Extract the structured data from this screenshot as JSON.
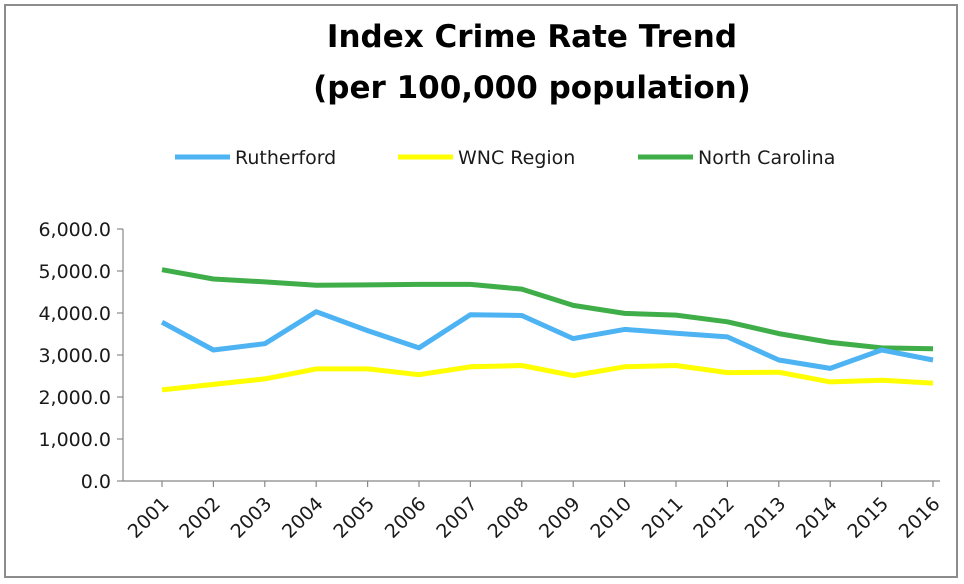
{
  "chart_data": {
    "type": "line",
    "title": "Index Crime Rate Trend",
    "subtitle": "(per 100,000 population)",
    "categories": [
      "2001",
      "2002",
      "2003",
      "2004",
      "2005",
      "2006",
      "2007",
      "2008",
      "2009",
      "2010",
      "2011",
      "2012",
      "2013",
      "2014",
      "2015",
      "2016"
    ],
    "ylim": [
      0,
      6000
    ],
    "yticks": [
      "0.0",
      "1,000.0",
      "2,000.0",
      "3,000.0",
      "4,000.0",
      "5,000.0",
      "6,000.0"
    ],
    "grid": false,
    "legend_position": "top",
    "series": [
      {
        "name": "Rutherford",
        "color": "#4db3f2",
        "values": [
          3780,
          3120,
          3270,
          4030,
          3580,
          3170,
          3960,
          3940,
          3390,
          3610,
          3520,
          3430,
          2880,
          2680,
          3120,
          2880
        ]
      },
      {
        "name": "WNC Region",
        "color": "#ffff00",
        "values": [
          2170,
          2300,
          2430,
          2670,
          2670,
          2530,
          2720,
          2750,
          2510,
          2720,
          2750,
          2580,
          2590,
          2360,
          2400,
          2330
        ]
      },
      {
        "name": "North Carolina",
        "color": "#3fae49",
        "values": [
          5030,
          4810,
          4740,
          4660,
          4670,
          4680,
          4680,
          4570,
          4180,
          3990,
          3950,
          3790,
          3510,
          3300,
          3170,
          3150
        ]
      }
    ]
  }
}
